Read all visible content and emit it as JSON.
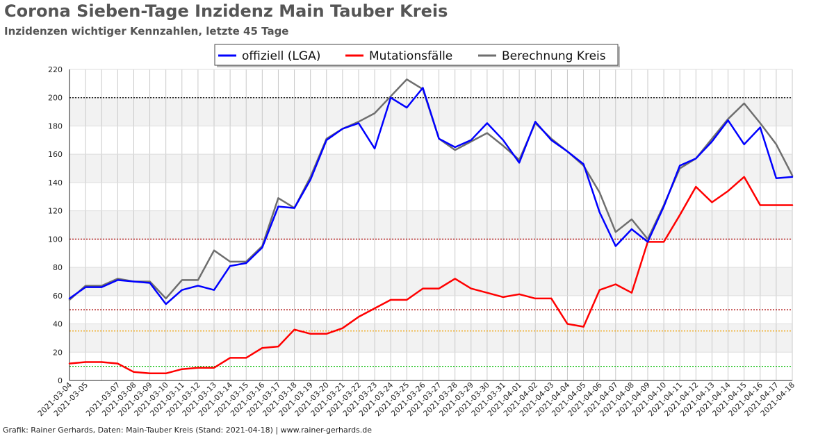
{
  "header": {
    "title": "Corona Sieben-Tage Inzidenz Main Tauber Kreis",
    "subtitle": "Inzidenzen wichtiger Kennzahlen, letzte 45 Tage"
  },
  "footer": {
    "text": "Grafik: Rainer Gerhards, Daten: Main-Tauber Kreis (Stand: 2021-04-18) | www.rainer-gerhards.de"
  },
  "chart_data": {
    "type": "line",
    "title": "Corona Sieben-Tage Inzidenz Main Tauber Kreis",
    "subtitle": "Inzidenzen wichtiger Kennzahlen, letzte 45 Tage",
    "xlabel": "",
    "ylabel": "",
    "ylim": [
      0,
      220
    ],
    "yticks": [
      0,
      20,
      40,
      60,
      80,
      100,
      120,
      140,
      160,
      180,
      200,
      220
    ],
    "grid": true,
    "legend_position": "top-center",
    "x": [
      "2021-03-04",
      "2021-03-05",
      "2021-03-06",
      "2021-03-07",
      "2021-03-08",
      "2021-03-09",
      "2021-03-10",
      "2021-03-11",
      "2021-03-12",
      "2021-03-13",
      "2021-03-14",
      "2021-03-15",
      "2021-03-16",
      "2021-03-17",
      "2021-03-18",
      "2021-03-19",
      "2021-03-20",
      "2021-03-21",
      "2021-03-22",
      "2021-03-23",
      "2021-03-24",
      "2021-03-25",
      "2021-03-26",
      "2021-03-27",
      "2021-03-28",
      "2021-03-29",
      "2021-03-30",
      "2021-03-31",
      "2021-04-01",
      "2021-04-02",
      "2021-04-03",
      "2021-04-04",
      "2021-04-05",
      "2021-04-06",
      "2021-04-07",
      "2021-04-08",
      "2021-04-09",
      "2021-04-10",
      "2021-04-11",
      "2021-04-12",
      "2021-04-13",
      "2021-04-14",
      "2021-04-15",
      "2021-04-16",
      "2021-04-17",
      "2021-04-18"
    ],
    "x_tick_labels": [
      "2021-03-04",
      "2021-03-05",
      "2021-03-07",
      "2021-03-08",
      "2021-03-09",
      "2021-03-10",
      "2021-03-11",
      "2021-03-12",
      "2021-03-13",
      "2021-03-14",
      "2021-03-15",
      "2021-03-16",
      "2021-03-17",
      "2021-03-18",
      "2021-03-19",
      "2021-03-20",
      "2021-03-21",
      "2021-03-22",
      "2021-03-23",
      "2021-03-24",
      "2021-03-25",
      "2021-03-26",
      "2021-03-27",
      "2021-03-28",
      "2021-03-29",
      "2021-03-30",
      "2021-03-31",
      "2021-04-01",
      "2021-04-02",
      "2021-04-03",
      "2021-04-04",
      "2021-04-05",
      "2021-04-06",
      "2021-04-07",
      "2021-04-08",
      "2021-04-09",
      "2021-04-10",
      "2021-04-11",
      "2021-04-12",
      "2021-04-13",
      "2021-04-14",
      "2021-04-15",
      "2021-04-16",
      "2021-04-17",
      "2021-04-18"
    ],
    "series": [
      {
        "name": "offiziell (LGA)",
        "color": "#0000ff",
        "values": [
          58,
          66,
          66,
          71,
          70,
          69,
          54,
          64,
          67,
          64,
          81,
          83,
          94,
          123,
          122,
          142,
          170,
          178,
          182,
          164,
          200,
          193,
          207,
          171,
          165,
          170,
          182,
          170,
          154,
          183,
          170,
          162,
          153,
          119,
          95,
          107,
          98,
          123,
          152,
          157,
          169,
          184,
          167,
          179,
          143,
          144
        ]
      },
      {
        "name": "Mutationsfälle",
        "color": "#ff0000",
        "values": [
          12,
          13,
          13,
          12,
          6,
          5,
          5,
          8,
          9,
          9,
          16,
          16,
          23,
          24,
          36,
          33,
          33,
          37,
          45,
          51,
          57,
          57,
          65,
          65,
          72,
          65,
          62,
          59,
          61,
          58,
          58,
          40,
          38,
          64,
          68,
          62,
          98,
          98,
          117,
          137,
          126,
          134,
          144,
          124,
          124,
          124
        ]
      },
      {
        "name": "Berechnung Kreis",
        "color": "#6e6e6e",
        "values": [
          57,
          67,
          67,
          72,
          70,
          70,
          58,
          71,
          71,
          92,
          84,
          84,
          95,
          129,
          122,
          144,
          171,
          178,
          183,
          189,
          201,
          213,
          206,
          171,
          163,
          169,
          175,
          166,
          156,
          182,
          171,
          162,
          152,
          133,
          105,
          114,
          100,
          124,
          150,
          157,
          171,
          185,
          196,
          182,
          167,
          145
        ]
      }
    ],
    "reference_lines": [
      {
        "value": 200,
        "color": "#000000"
      },
      {
        "value": 100,
        "color": "#aa0000"
      },
      {
        "value": 50,
        "color": "#aa0000"
      },
      {
        "value": 35,
        "color": "#f0a000"
      },
      {
        "value": 10,
        "color": "#00bb00"
      }
    ]
  }
}
